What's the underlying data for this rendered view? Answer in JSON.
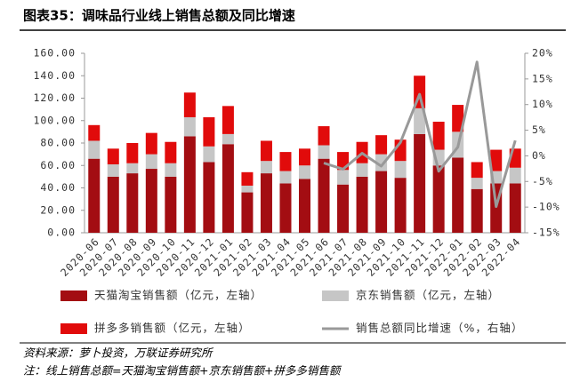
{
  "chart_data": {
    "type": "bar",
    "stacked": true,
    "title": "图表35：调味品行业线上销售总额及同比增速",
    "categories": [
      "2020-06",
      "2020-07",
      "2020-08",
      "2020-09",
      "2020-10",
      "2020-11",
      "2020-12",
      "2021-01",
      "2021-02",
      "2021-03",
      "2021-04",
      "2021-05",
      "2021-06",
      "2021-07",
      "2021-08",
      "2021-09",
      "2021-10",
      "2021-11",
      "2021-12",
      "2022-01",
      "2022-02",
      "2022-03",
      "2022-04"
    ],
    "series": [
      {
        "name": "天猫淘宝销售额（亿元，左轴）",
        "color": "#a30d12",
        "values": [
          66,
          50,
          53,
          57,
          50,
          86,
          63,
          79,
          36,
          53,
          44,
          48,
          66,
          43,
          50,
          55,
          49,
          88,
          60,
          67,
          39,
          44,
          44
        ]
      },
      {
        "name": "京东销售额（亿元，左轴）",
        "color": "#c6c6c6",
        "values": [
          16,
          11,
          9,
          13,
          12,
          17,
          14,
          9,
          6,
          11,
          11,
          12,
          12,
          13,
          12,
          15,
          15,
          23,
          14,
          23,
          10,
          11,
          14
        ]
      },
      {
        "name": "拼多多销售额（亿元，左轴）",
        "color": "#e10b0b",
        "values": [
          14,
          14,
          18,
          19,
          19,
          22,
          26,
          25,
          12,
          18,
          17,
          15,
          17,
          16,
          19,
          17,
          19,
          29,
          25,
          24,
          14,
          19,
          17
        ]
      },
      {
        "name": "销售总额同比增速（%，右轴）",
        "color": "#999999",
        "type": "line",
        "axis": "y2",
        "values": [
          null,
          null,
          null,
          null,
          null,
          null,
          null,
          null,
          null,
          null,
          null,
          null,
          -1.4,
          -2.6,
          0.5,
          -2,
          2.6,
          12,
          -3,
          1.7,
          18.3,
          -9.9,
          3
        ]
      }
    ],
    "ylim": [
      0,
      160
    ],
    "yticks": [
      {
        "value": 0,
        "label": "0.00"
      },
      {
        "value": 20,
        "label": "20.00"
      },
      {
        "value": 40,
        "label": "40.00"
      },
      {
        "value": 60,
        "label": "60.00"
      },
      {
        "value": 80,
        "label": "80.00"
      },
      {
        "value": 100,
        "label": "100.00"
      },
      {
        "value": 120,
        "label": "120.00"
      },
      {
        "value": 140,
        "label": "140.00"
      },
      {
        "value": 160,
        "label": "160.00"
      }
    ],
    "y2lim": [
      -15,
      20
    ],
    "y2ticks": [
      {
        "value": -15,
        "label": "-15%"
      },
      {
        "value": -10,
        "label": "-10%"
      },
      {
        "value": -5,
        "label": "-5%"
      },
      {
        "value": 0,
        "label": "0%"
      },
      {
        "value": 5,
        "label": "5%"
      },
      {
        "value": 10,
        "label": "10%"
      },
      {
        "value": 15,
        "label": "15%"
      },
      {
        "value": 20,
        "label": "20%"
      }
    ],
    "source": "资料来源：萝卜投资，万联证券研究所",
    "note": "注：线上销售总额=天猫淘宝销售额+京东销售额+拼多多销售额"
  }
}
